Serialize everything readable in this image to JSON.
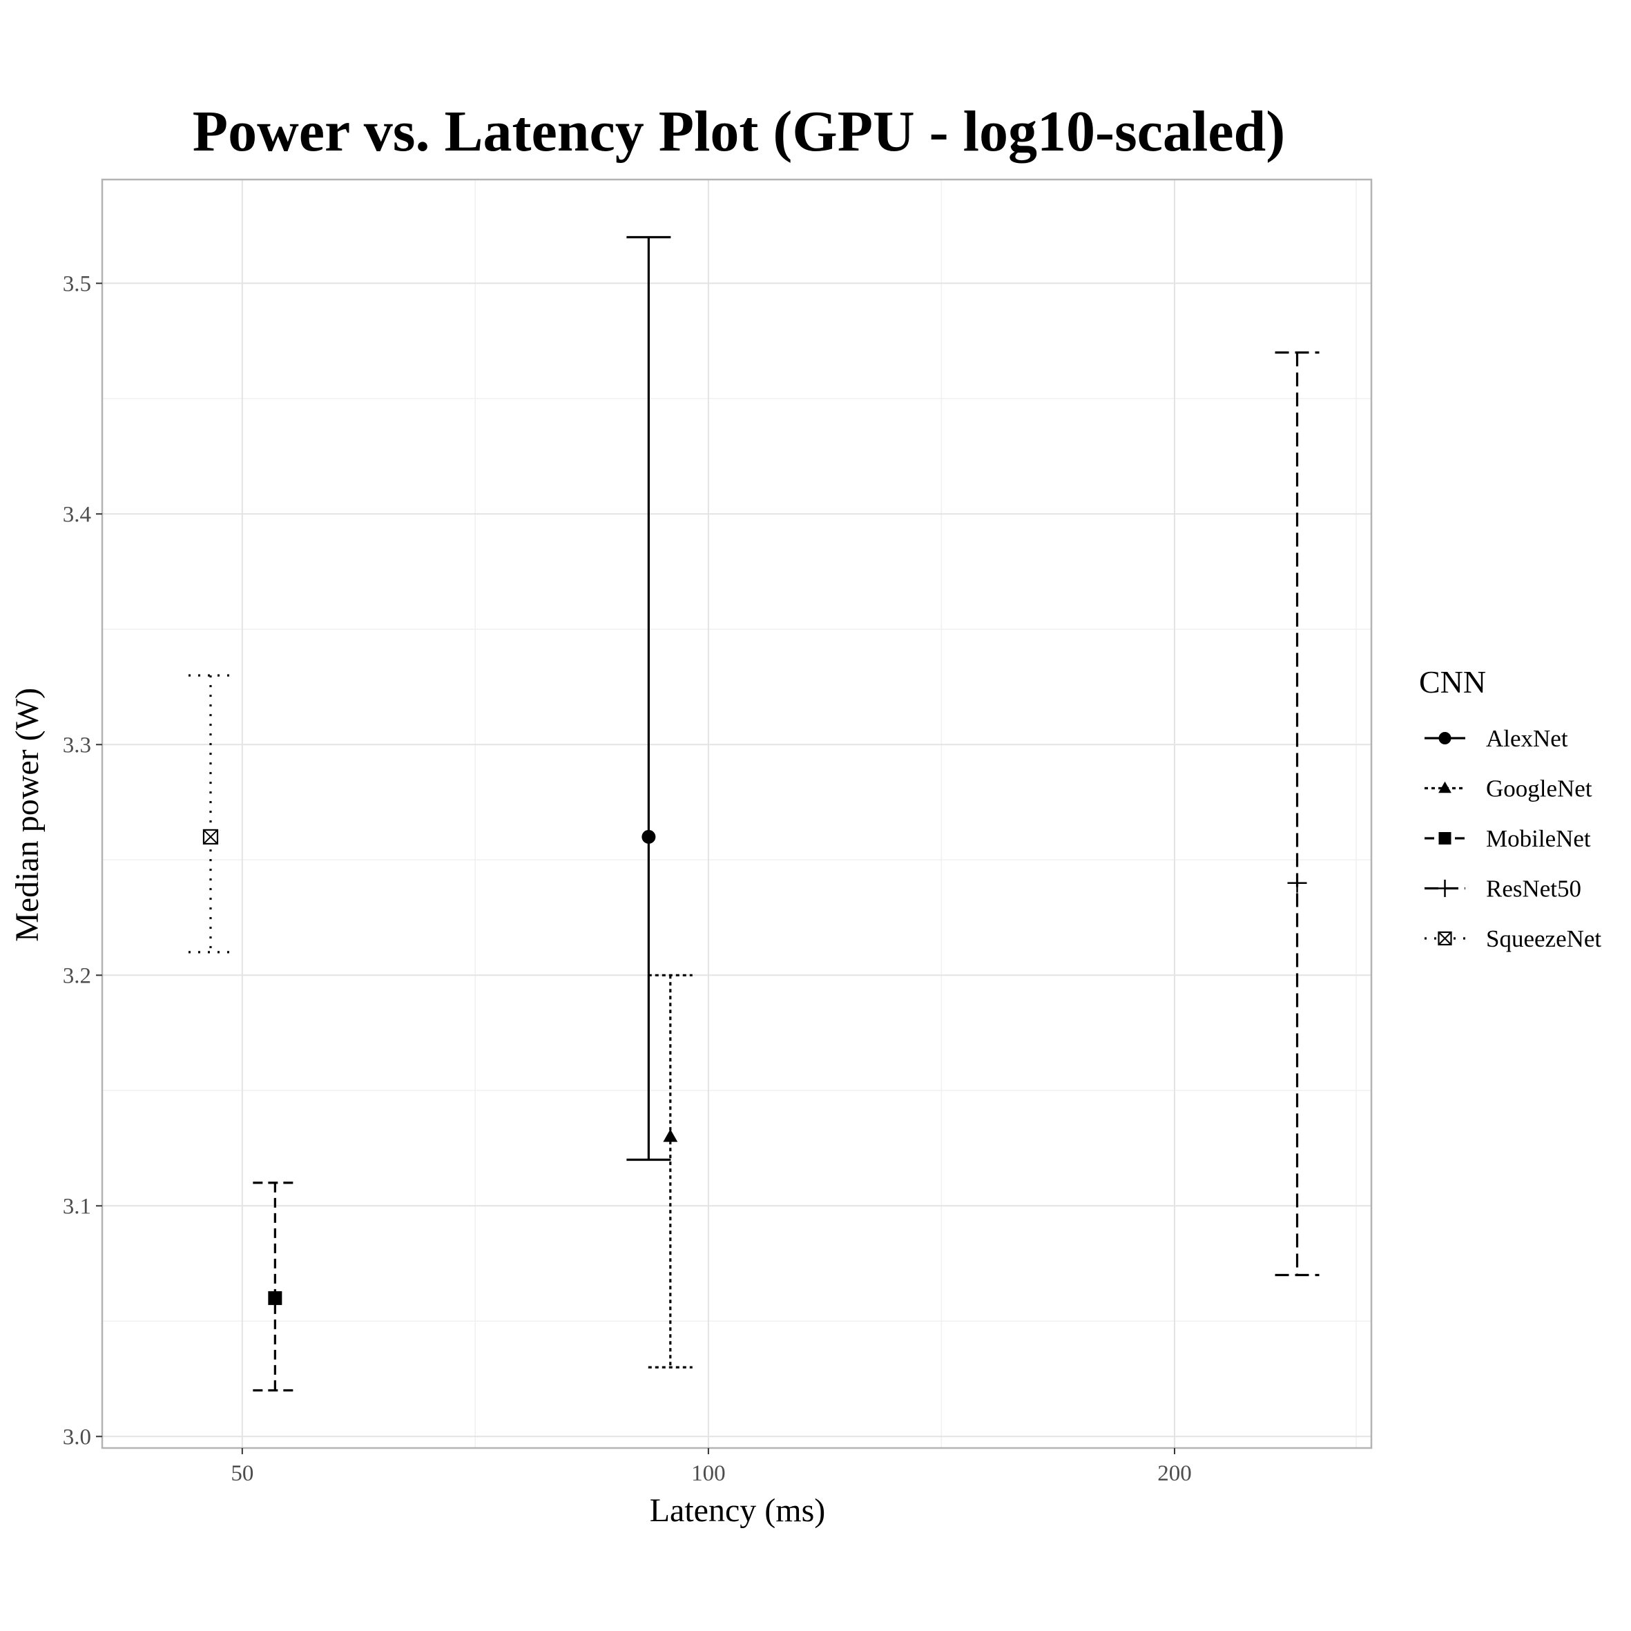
{
  "chart_data": {
    "type": "scatter",
    "title": "Power vs. Latency Plot (GPU - log10-scaled)",
    "xlabel": "Latency (ms)",
    "ylabel": "Median power (W)",
    "x_scale": "log10",
    "xlim": [
      40.6,
      268
    ],
    "ylim": [
      2.995,
      3.545
    ],
    "x_ticks": [
      50,
      100,
      200
    ],
    "x_tick_labels": [
      "50",
      "100",
      "200"
    ],
    "x_minor_ticks": [
      70.7,
      141.4
    ],
    "y_ticks": [
      3.0,
      3.1,
      3.2,
      3.3,
      3.4,
      3.5
    ],
    "y_tick_labels": [
      "3.0",
      "3.1",
      "3.2",
      "3.3",
      "3.4",
      "3.5"
    ],
    "grid": true,
    "legend_title": "CNN",
    "legend_position": "right",
    "series": [
      {
        "name": "AlexNet",
        "marker": "circle",
        "linestyle": "solid",
        "x": 91.5,
        "y": 3.26,
        "ymin": 3.12,
        "ymax": 3.52
      },
      {
        "name": "GoogleNet",
        "marker": "triangle",
        "linestyle": "dotted",
        "x": 94.5,
        "y": 3.13,
        "ymin": 3.03,
        "ymax": 3.2
      },
      {
        "name": "MobileNet",
        "marker": "square",
        "linestyle": "dashed",
        "x": 52.5,
        "y": 3.06,
        "ymin": 3.02,
        "ymax": 3.11
      },
      {
        "name": "ResNet50",
        "marker": "plus",
        "linestyle": "longdash",
        "x": 240,
        "y": 3.24,
        "ymin": 3.07,
        "ymax": 3.47
      },
      {
        "name": "SqueezeNet",
        "marker": "square-cross",
        "linestyle": "sparsedot",
        "x": 47.7,
        "y": 3.26,
        "ymin": 3.21,
        "ymax": 3.33
      }
    ]
  }
}
